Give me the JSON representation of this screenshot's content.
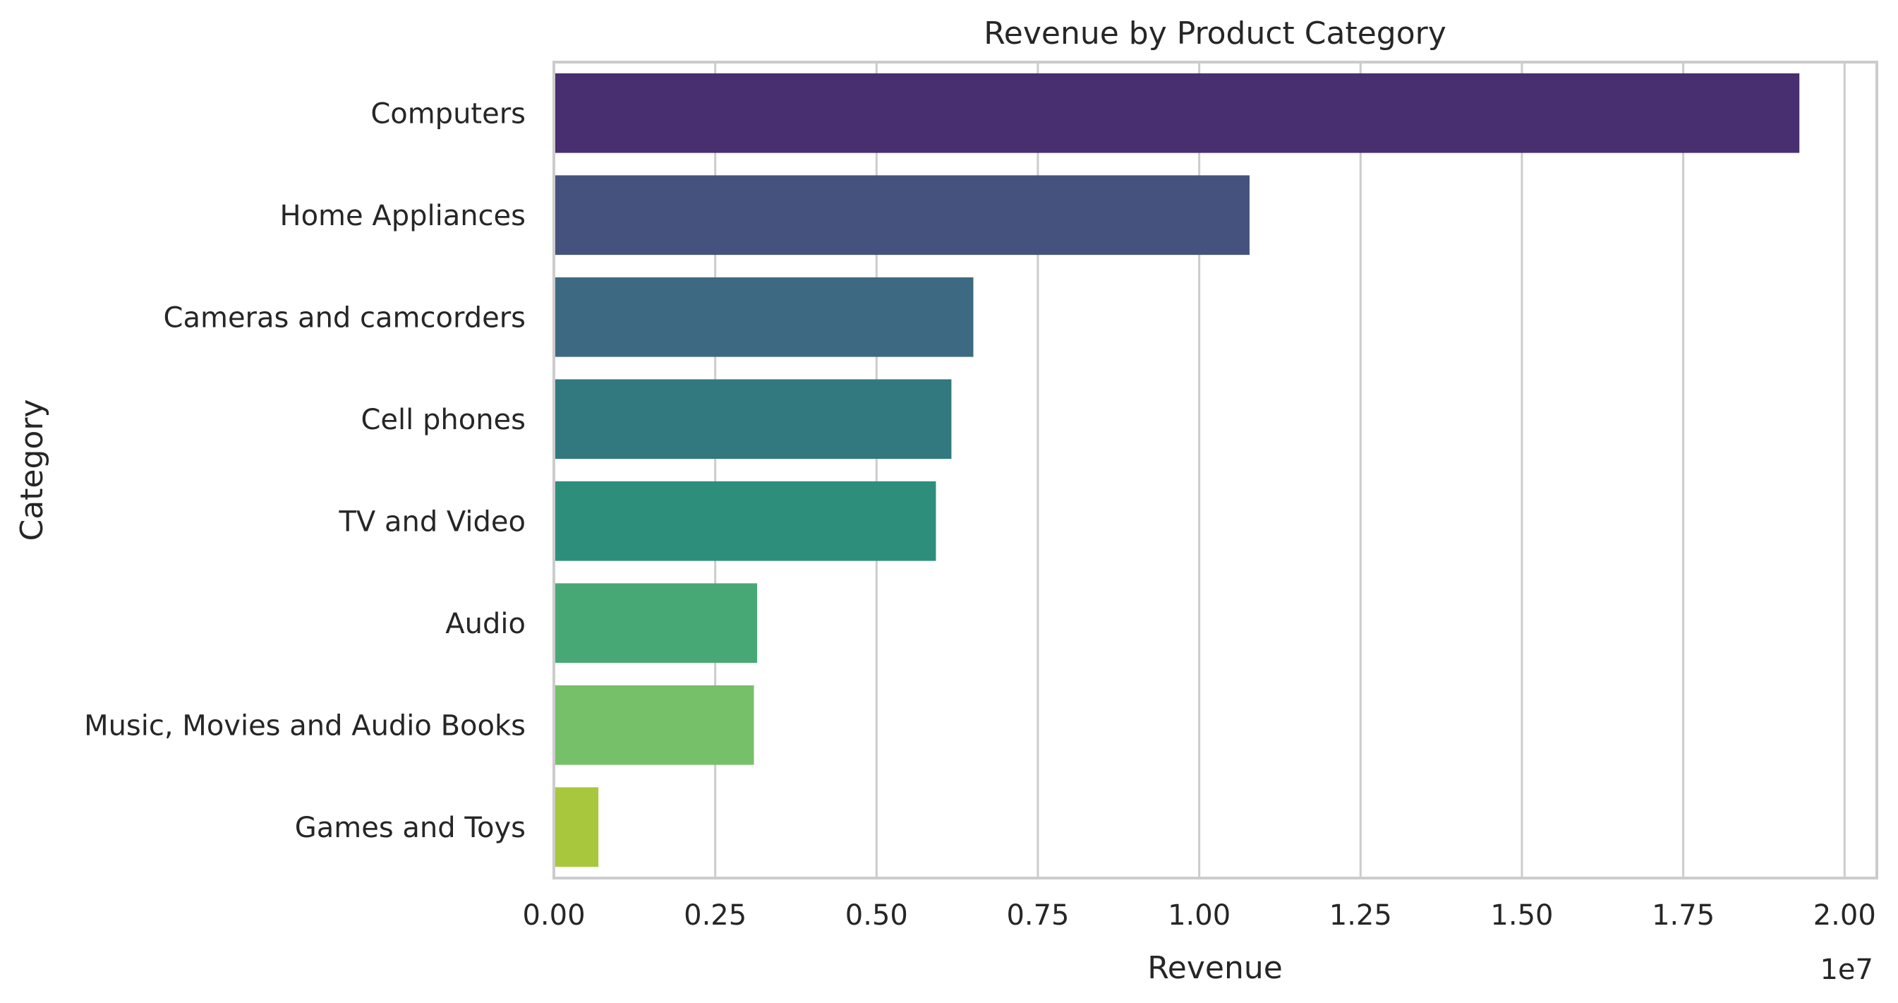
{
  "chart_data": {
    "type": "bar",
    "orientation": "horizontal",
    "title": "Revenue by Product Category",
    "xlabel": "Revenue",
    "ylabel": "Category",
    "offset_label": "1e7",
    "xlim": [
      0,
      20500000
    ],
    "xticks": [
      0,
      2500000,
      5000000,
      7500000,
      10000000,
      12500000,
      15000000,
      17500000,
      20000000
    ],
    "xtick_labels": [
      "0.00",
      "0.25",
      "0.50",
      "0.75",
      "1.00",
      "1.25",
      "1.50",
      "1.75",
      "2.00"
    ],
    "grid": "vertical",
    "categories": [
      "Computers",
      "Home Appliances",
      "Cameras and camcorders",
      "Cell phones",
      "TV and Video",
      "Audio",
      "Music, Movies and Audio Books",
      "Games and Toys"
    ],
    "values": [
      19300000,
      10780000,
      6500000,
      6160000,
      5920000,
      3150000,
      3100000,
      690000
    ],
    "colors": [
      "#482f6f",
      "#46527e",
      "#3d6a82",
      "#31787f",
      "#2e8e7c",
      "#47a876",
      "#77c06a",
      "#a9c73c"
    ]
  }
}
